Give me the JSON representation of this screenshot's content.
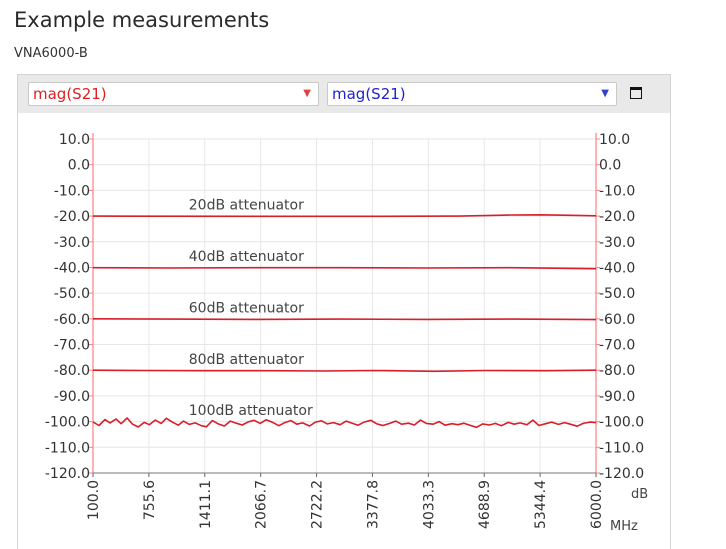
{
  "page": {
    "title": "Example measurements",
    "subtitle": "VNA6000-B"
  },
  "toolbar": {
    "left_trace": "mag(S21)",
    "right_trace": "mag(S21)",
    "left_color": "#e02020",
    "right_color": "#2020d0",
    "maximize_icon": "maximize-icon"
  },
  "chart_data": {
    "type": "line",
    "x_ticks": [
      "100.0",
      "755.6",
      "1411.1",
      "2066.7",
      "2722.2",
      "3377.8",
      "4033.3",
      "4688.9",
      "5344.4",
      "6000.0"
    ],
    "y_ticks": [
      "10.0",
      "0.0",
      "-10.0",
      "-20.0",
      "-30.0",
      "-40.0",
      "-50.0",
      "-60.0",
      "-70.0",
      "-80.0",
      "-90.0",
      "-100.0",
      "-110.0",
      "-120.0"
    ],
    "xlim": [
      100,
      6000
    ],
    "ylim": [
      -120,
      10
    ],
    "x_unit": "MHz",
    "y_unit": "dB",
    "grid": true,
    "trace_color": "#d81e2a",
    "axis_color": "#ff8080",
    "annotations": [
      {
        "text": "20dB attenuator",
        "x": 1411.1,
        "y": -17.5
      },
      {
        "text": "40dB attenuator",
        "x": 1411.1,
        "y": -37.5
      },
      {
        "text": "60dB attenuator",
        "x": 1411.1,
        "y": -57.5
      },
      {
        "text": "80dB attenuator",
        "x": 1411.1,
        "y": -77.5
      },
      {
        "text": "100dB attenuator",
        "x": 1411.1,
        "y": -97.5
      }
    ],
    "series": [
      {
        "x": [
          100,
          2000,
          3400,
          4400,
          4700,
          5000,
          5344,
          5700,
          6000
        ],
        "y": [
          -20.0,
          -20.1,
          -20.1,
          -20.0,
          -19.8,
          -19.6,
          -19.5,
          -19.7,
          -19.9
        ]
      },
      {
        "x": [
          100,
          1000,
          2000,
          3000,
          4000,
          5000,
          5500,
          6000
        ],
        "y": [
          -40.1,
          -40.2,
          -40.1,
          -40.1,
          -40.2,
          -40.1,
          -40.3,
          -40.5
        ]
      },
      {
        "x": [
          100,
          1000,
          2000,
          3000,
          4000,
          5000,
          6000
        ],
        "y": [
          -60.0,
          -60.1,
          -60.2,
          -60.1,
          -60.2,
          -60.1,
          -60.3
        ]
      },
      {
        "x": [
          100,
          700,
          1400,
          2100,
          2800,
          3400,
          4100,
          4700,
          5400,
          6000
        ],
        "y": [
          -80.0,
          -80.1,
          -80.2,
          -80.2,
          -80.3,
          -80.1,
          -80.4,
          -80.1,
          -80.2,
          -80.0
        ]
      },
      {
        "x": [
          100,
          170,
          240,
          300,
          370,
          430,
          500,
          560,
          630,
          700,
          760,
          830,
          900,
          960,
          1030,
          1100,
          1160,
          1230,
          1300,
          1370,
          1430,
          1500,
          1570,
          1640,
          1710,
          1780,
          1850,
          1920,
          1990,
          2060,
          2130,
          2200,
          2280,
          2350,
          2420,
          2490,
          2560,
          2640,
          2710,
          2780,
          2850,
          2920,
          3000,
          3070,
          3140,
          3210,
          3280,
          3360,
          3430,
          3500,
          3580,
          3650,
          3720,
          3800,
          3870,
          3940,
          4010,
          4090,
          4160,
          4230,
          4310,
          4380,
          4450,
          4530,
          4600,
          4670,
          4750,
          4820,
          4890,
          4970,
          5040,
          5110,
          5190,
          5260,
          5330,
          5410,
          5480,
          5560,
          5630,
          5700,
          5780,
          5850,
          5930,
          6000
        ],
        "y": [
          -100.1,
          -101.5,
          -99.2,
          -100.5,
          -99.0,
          -100.8,
          -98.6,
          -100.9,
          -102.1,
          -100.3,
          -101.2,
          -99.4,
          -100.7,
          -98.7,
          -100.2,
          -101.4,
          -99.8,
          -101.1,
          -100.5,
          -101.6,
          -102.0,
          -99.6,
          -100.9,
          -101.7,
          -99.8,
          -100.6,
          -101.3,
          -100.1,
          -99.5,
          -100.7,
          -99.3,
          -100.2,
          -101.6,
          -100.4,
          -99.6,
          -101.0,
          -100.5,
          -101.7,
          -100.2,
          -99.7,
          -100.9,
          -100.4,
          -101.2,
          -99.8,
          -100.6,
          -101.4,
          -100.2,
          -99.5,
          -100.9,
          -101.5,
          -100.7,
          -99.8,
          -101.0,
          -100.6,
          -101.3,
          -99.4,
          -100.7,
          -101.0,
          -100.0,
          -101.4,
          -100.8,
          -101.2,
          -100.6,
          -101.5,
          -102.2,
          -100.9,
          -101.3,
          -100.7,
          -101.6,
          -100.3,
          -101.0,
          -100.5,
          -101.2,
          -99.4,
          -101.5,
          -100.8,
          -100.2,
          -101.1,
          -100.4,
          -101.0,
          -101.8,
          -100.7,
          -100.2,
          -100.4
        ]
      }
    ]
  }
}
